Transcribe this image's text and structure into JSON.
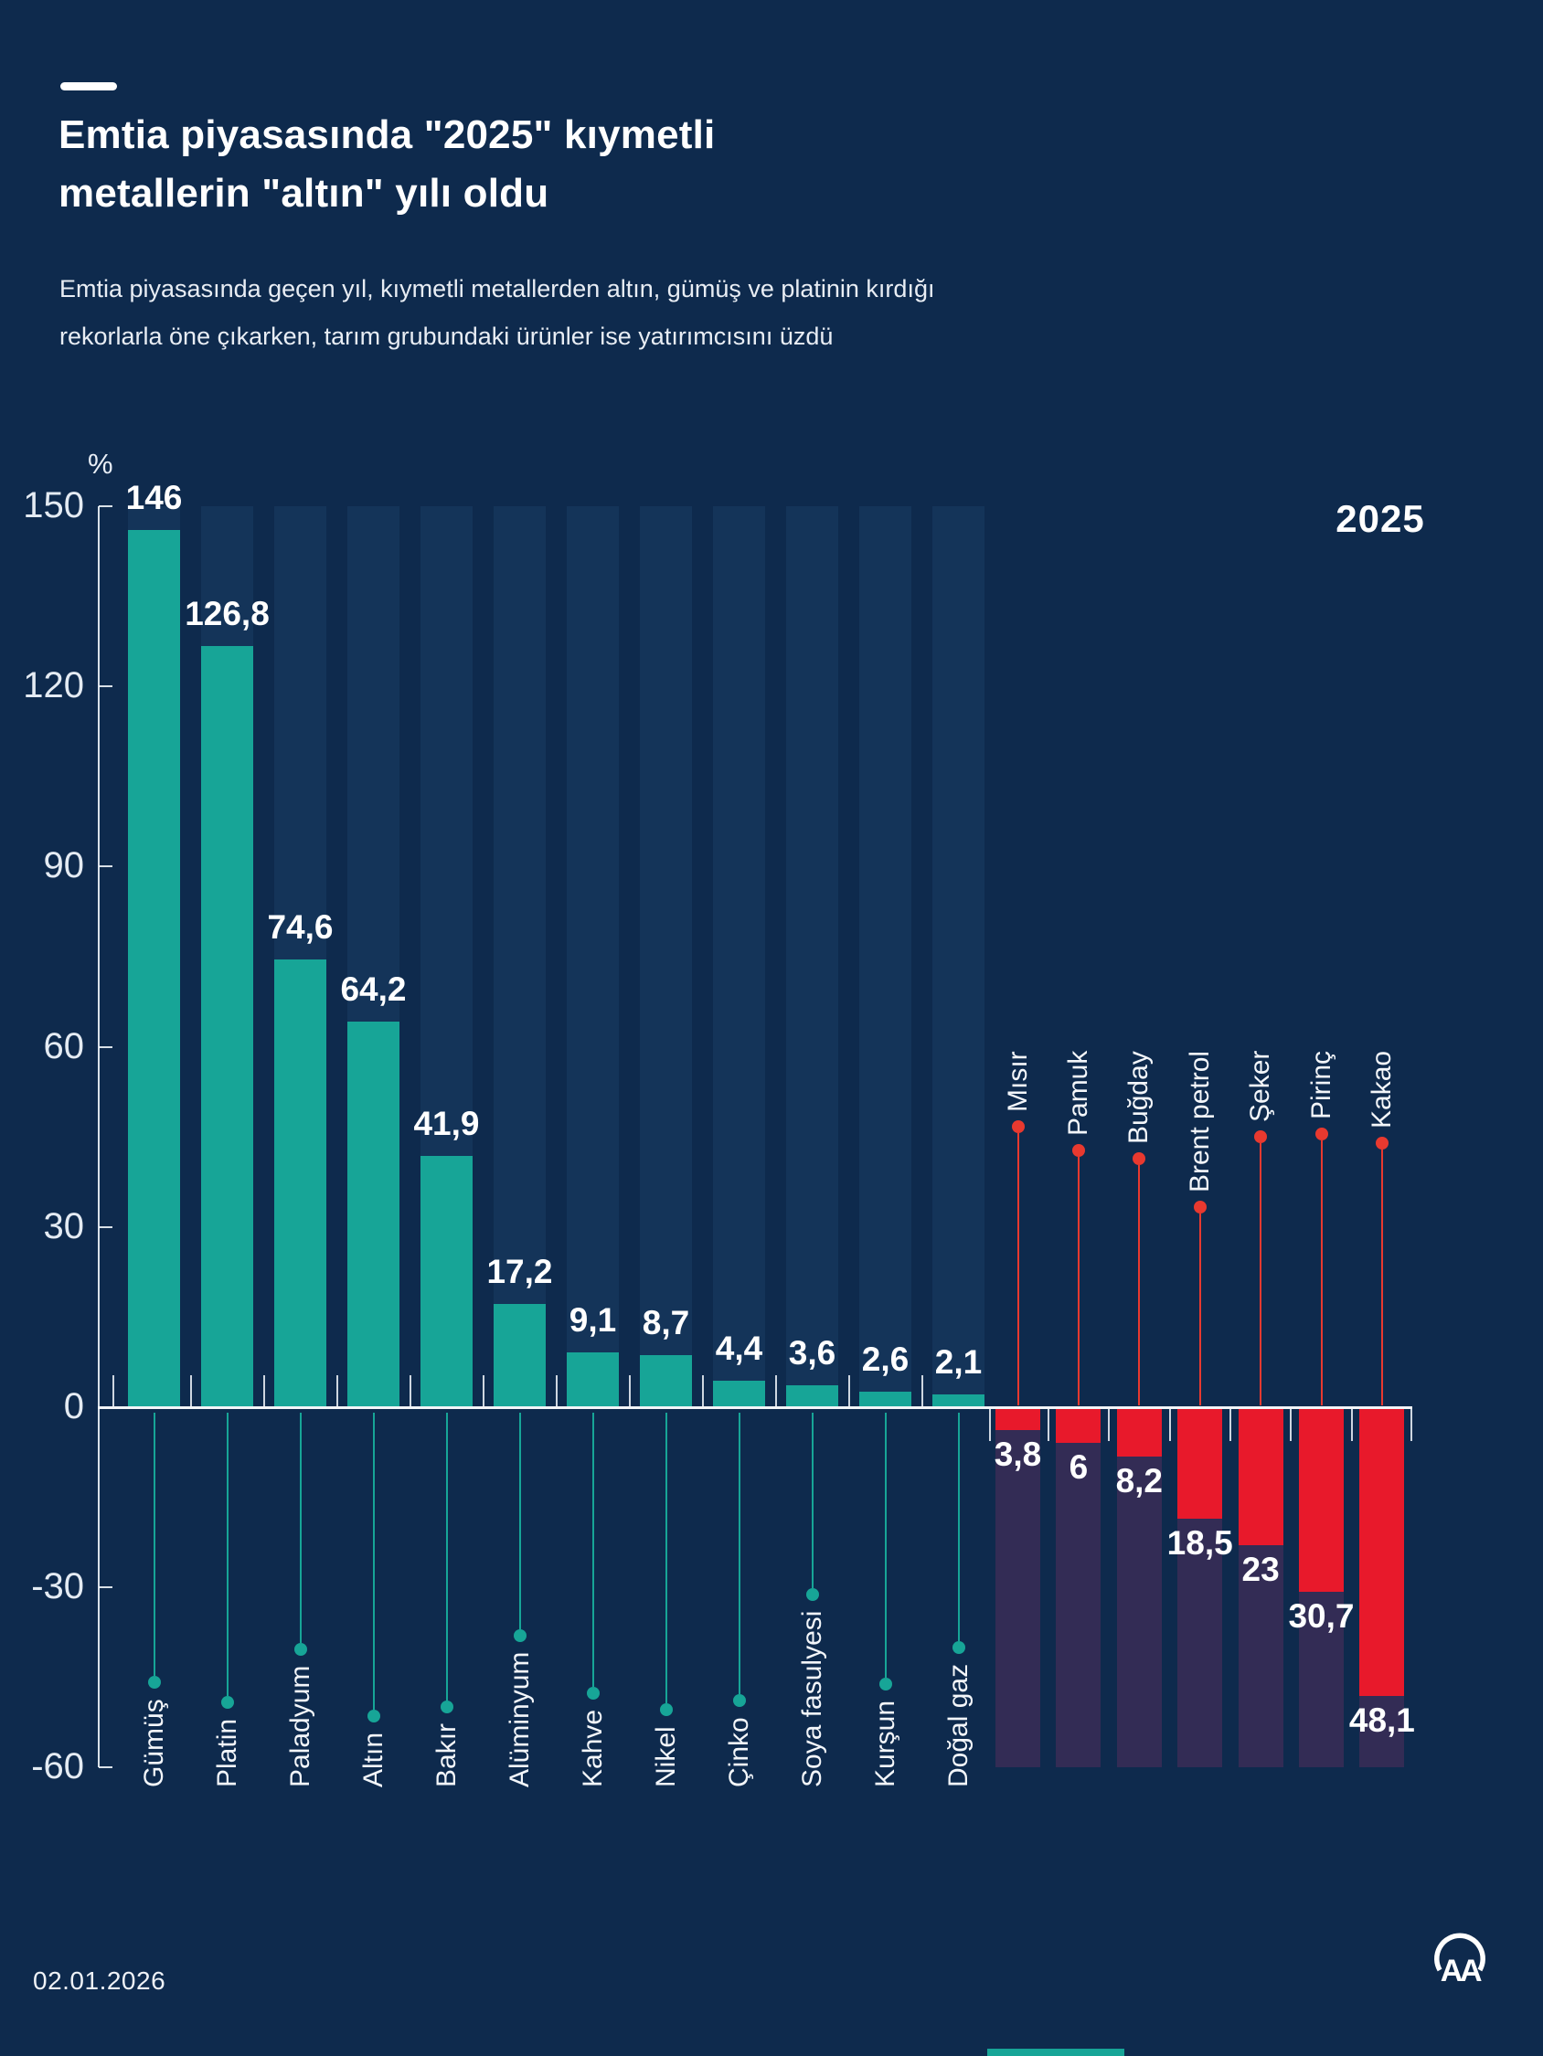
{
  "header": {
    "title_line1": "Emtia piyasasında \"2025\" kıymetli",
    "title_line2": "metallerin \"altın\" yılı oldu",
    "subtitle_line1": "Emtia piyasasında geçen yıl, kıymetli metallerden altın, gümüş ve platinin kırdığı",
    "subtitle_line2": "rekorlarla öne çıkarken, tarım grubundaki ürünler ise yatırımcısını üzdü"
  },
  "chart_data": {
    "type": "bar",
    "title": "Emtia piyasasında \"2025\" kıymetli metallerin \"altın\" yılı oldu",
    "unit_label": "%",
    "year_label": "2025",
    "ylim": [
      -60,
      150
    ],
    "grid": "off",
    "y_ticks": [
      {
        "value": 150,
        "display": "150"
      },
      {
        "value": 120,
        "display": "120"
      },
      {
        "value": 90,
        "display": "90"
      },
      {
        "value": 60,
        "display": "60"
      },
      {
        "value": 30,
        "display": "30"
      },
      {
        "value": 0,
        "display": "0"
      },
      {
        "value": -30,
        "display": "-30"
      },
      {
        "value": -60,
        "display": "-60"
      }
    ],
    "series": [
      {
        "name": "gainers",
        "bar_color": "#17a597",
        "items": [
          {
            "label": "Gümüş",
            "value": 146,
            "display": "146"
          },
          {
            "label": "Platin",
            "value": 126.8,
            "display": "126,8"
          },
          {
            "label": "Paladyum",
            "value": 74.6,
            "display": "74,6"
          },
          {
            "label": "Altın",
            "value": 64.2,
            "display": "64,2"
          },
          {
            "label": "Bakır",
            "value": 41.9,
            "display": "41,9"
          },
          {
            "label": "Alüminyum",
            "value": 17.2,
            "display": "17,2"
          },
          {
            "label": "Kahve",
            "value": 9.1,
            "display": "9,1"
          },
          {
            "label": "Nikel",
            "value": 8.7,
            "display": "8,7"
          },
          {
            "label": "Çinko",
            "value": 4.4,
            "display": "4,4"
          },
          {
            "label": "Soya fasulyesi",
            "value": 3.6,
            "display": "3,6"
          },
          {
            "label": "Kurşun",
            "value": 2.6,
            "display": "2,6"
          },
          {
            "label": "Doğal gaz",
            "value": 2.1,
            "display": "2,1"
          }
        ]
      },
      {
        "name": "losers",
        "bar_color": "#e8192b",
        "items": [
          {
            "label": "Mısır",
            "value": -3.8,
            "display": "3,8"
          },
          {
            "label": "Pamuk",
            "value": -6,
            "display": "6"
          },
          {
            "label": "Buğday",
            "value": -8.2,
            "display": "8,2"
          },
          {
            "label": "Brent petrol",
            "value": -18.5,
            "display": "18,5"
          },
          {
            "label": "Şeker",
            "value": -23,
            "display": "23"
          },
          {
            "label": "Pirinç",
            "value": -30.7,
            "display": "30,7"
          },
          {
            "label": "Kakao",
            "value": -48.1,
            "display": "48,1"
          }
        ]
      }
    ],
    "colors": {
      "background": "#0e2a4d",
      "stripe_positive": "#143459",
      "stripe_negative": "#332c55",
      "bar_positive": "#17a597",
      "bar_negative": "#e8192b",
      "leader_positive": "#17a597",
      "leader_negative": "#e8392f",
      "text": "#ffffff"
    }
  },
  "footer": {
    "date": "02.01.2026",
    "agency_logo": "AA"
  }
}
